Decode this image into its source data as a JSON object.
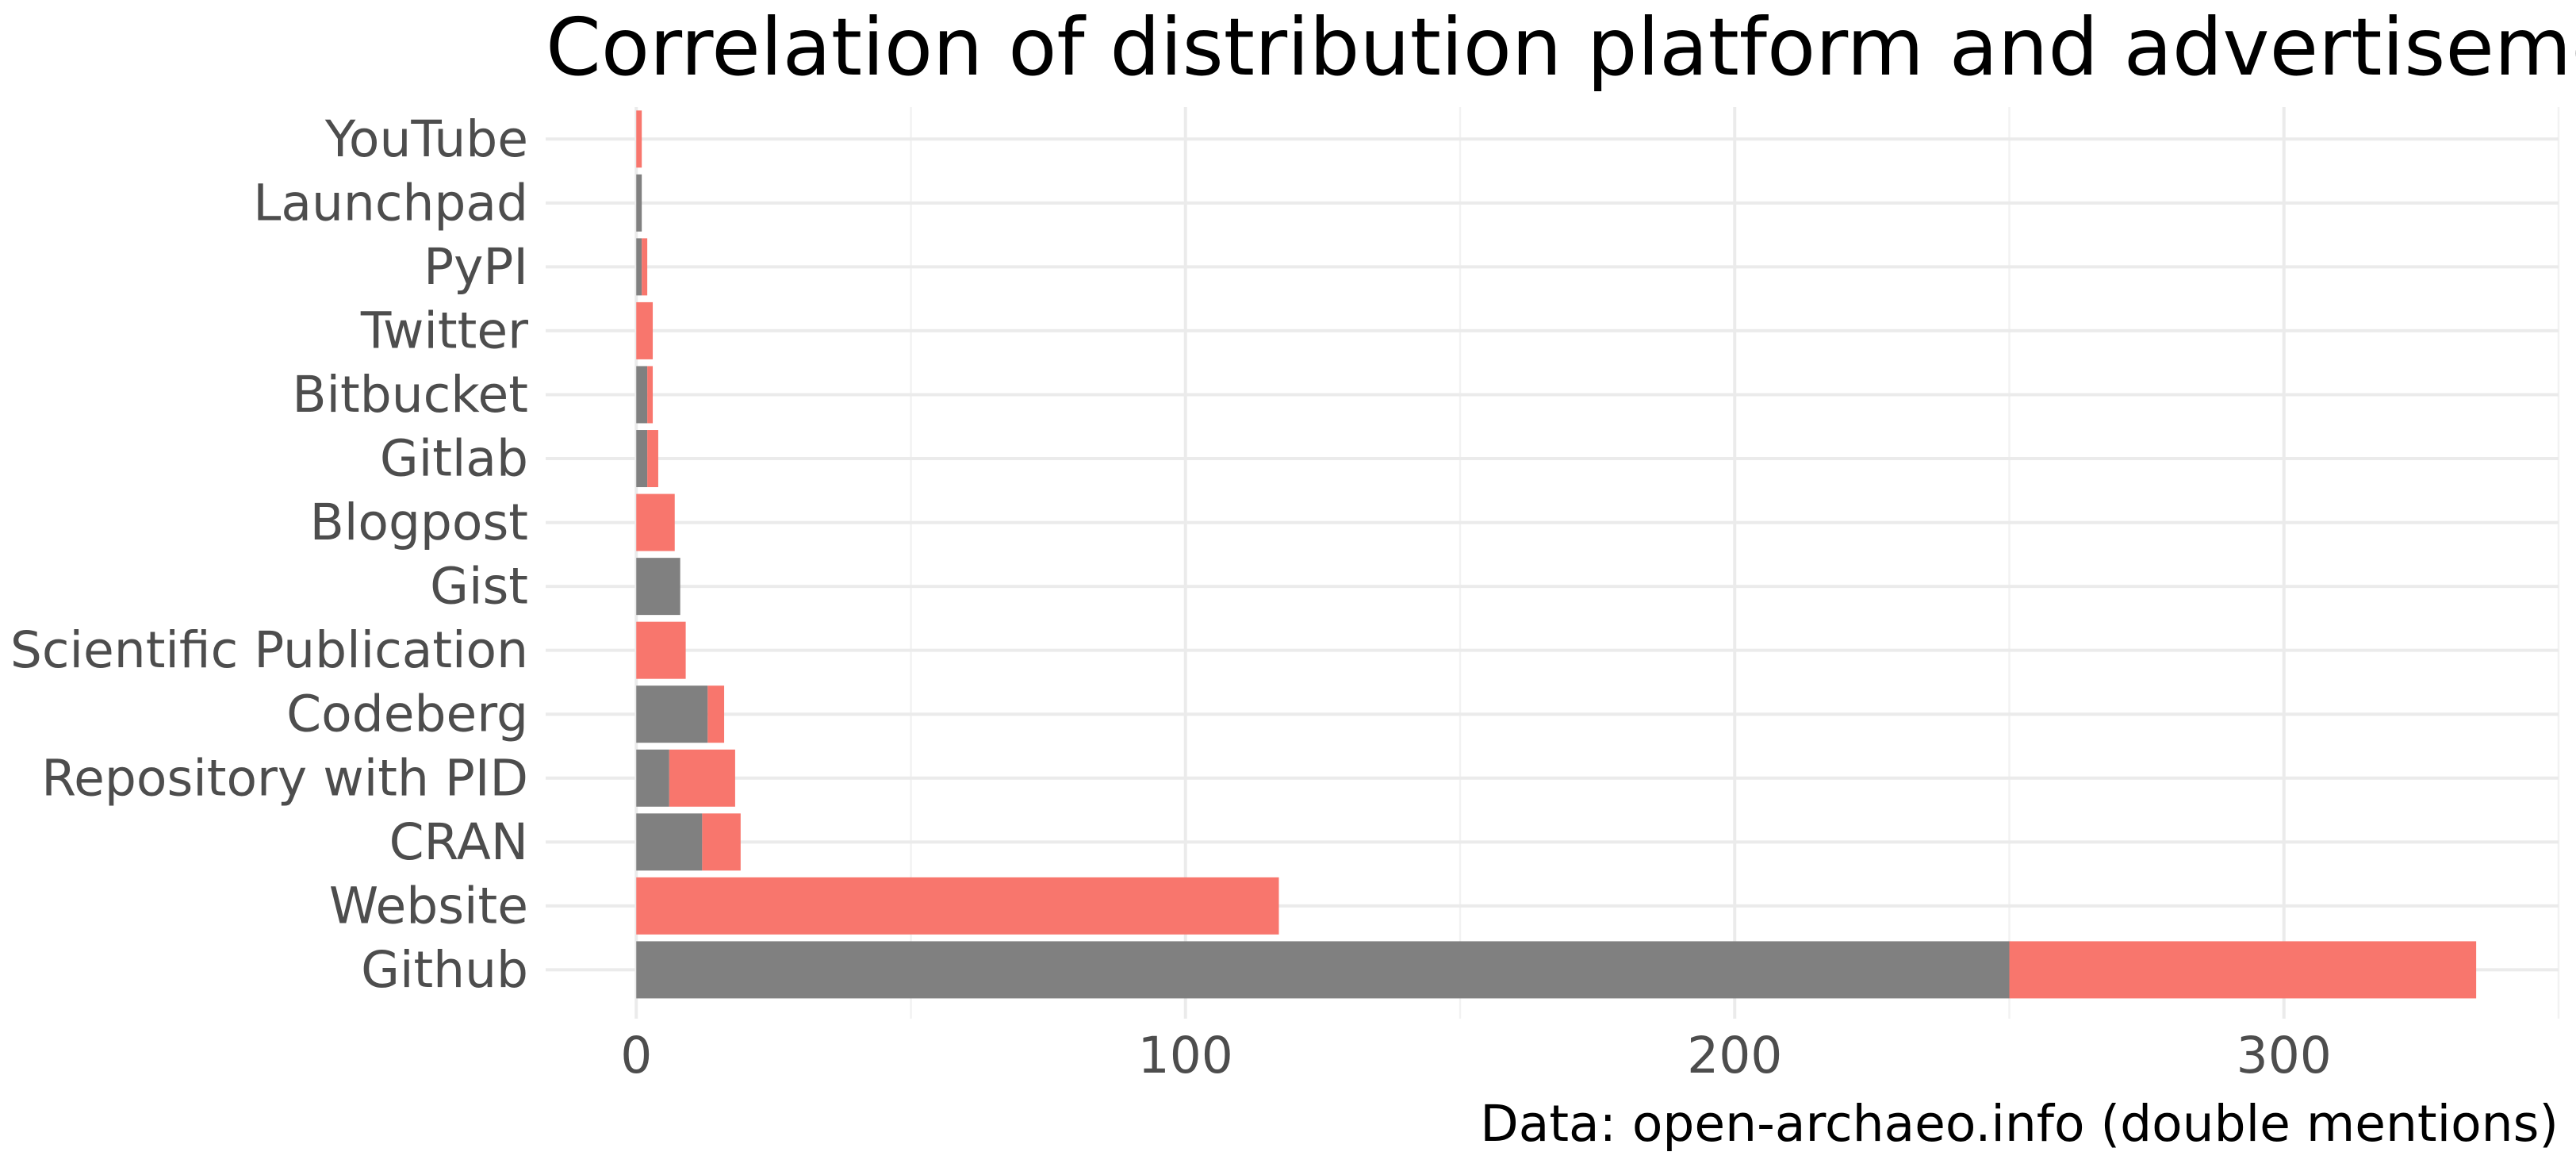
{
  "chart_data": {
    "type": "bar",
    "orientation": "horizontal",
    "stacked": true,
    "title": "Correlation of distribution platform and advertisement",
    "caption": "Data: open-archaeo.info (double mentions)",
    "xlabel": "",
    "ylabel": "",
    "categories": [
      "YouTube",
      "Launchpad",
      "PyPI",
      "Twitter",
      "Bitbucket",
      "Gitlab",
      "Blogpost",
      "Gist",
      "Scientific Publication",
      "Codeberg",
      "Repository with PID",
      "CRAN",
      "Website",
      "Github"
    ],
    "series": [
      {
        "color": "#808080",
        "values": [
          0,
          1,
          1,
          0,
          2,
          2,
          0,
          8,
          0,
          13,
          6,
          12,
          0,
          250
        ]
      },
      {
        "color": "#F8766D",
        "values": [
          1,
          0,
          1,
          3,
          1,
          2,
          7,
          0,
          9,
          3,
          12,
          7,
          117,
          85
        ]
      }
    ],
    "xlim": [
      -16.5,
      350
    ],
    "xticks": [
      0,
      100,
      200,
      300
    ],
    "xtick_labels": [
      "0",
      "100",
      "200",
      "300"
    ],
    "grid": true,
    "legend": "none"
  }
}
